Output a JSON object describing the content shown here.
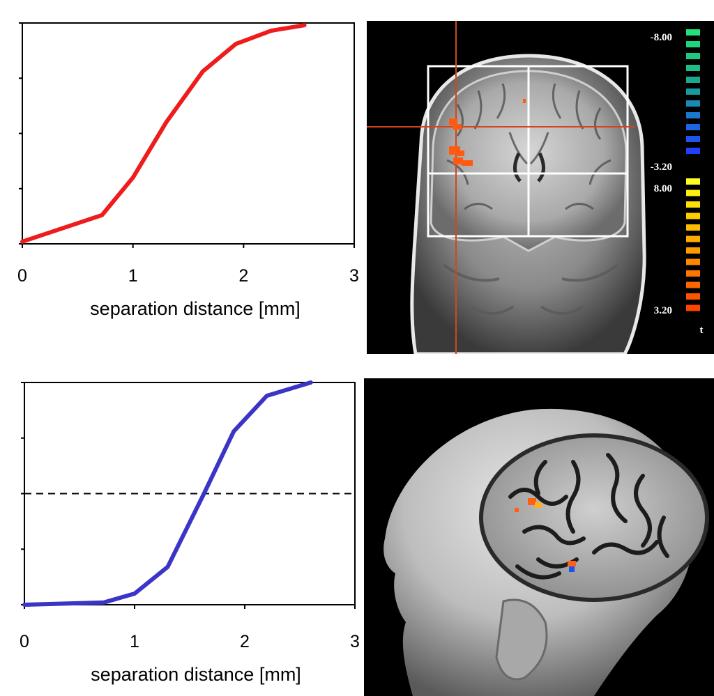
{
  "chart_data": [
    {
      "type": "line",
      "title": "",
      "xlabel": "separation distance [mm]",
      "ylabel": "",
      "xlim": [
        0,
        3
      ],
      "ylim": [
        0,
        1
      ],
      "x_ticks": [
        "0",
        "1",
        "2",
        "3"
      ],
      "y_tick_count": 5,
      "grid": false,
      "series": [
        {
          "color": "#ee1c1c",
          "x": [
            0,
            0.72,
            1.0,
            1.3,
            1.63,
            1.93,
            2.25,
            2.55
          ],
          "y": [
            0.01,
            0.13,
            0.3,
            0.55,
            0.78,
            0.905,
            0.965,
            0.99
          ]
        }
      ]
    },
    {
      "type": "line",
      "title": "",
      "xlabel": "separation distance [mm]",
      "ylabel": "",
      "xlim": [
        0,
        3
      ],
      "ylim": [
        0,
        1
      ],
      "x_ticks": [
        "0",
        "1",
        "2",
        "3"
      ],
      "y_tick_count": 5,
      "grid": false,
      "reference_line": {
        "y": 0.5,
        "style": "dashed",
        "color": "#000000"
      },
      "series": [
        {
          "color": "#3b35c7",
          "x": [
            0,
            0.72,
            1.0,
            1.3,
            1.63,
            1.9,
            2.2,
            2.6
          ],
          "y": [
            0.0,
            0.01,
            0.05,
            0.17,
            0.5,
            0.78,
            0.94,
            1.0
          ]
        }
      ]
    }
  ],
  "mri_colorbar": {
    "labels": [
      "-8.00",
      "-3.20",
      "8.00",
      "3.20",
      "t"
    ],
    "negative_colors": [
      "#22e07a",
      "#20d47e",
      "#1fc882",
      "#1ebc86",
      "#1ca88f",
      "#1a98a0",
      "#188cb4",
      "#1a78d0",
      "#1c66e0",
      "#1e55ee",
      "#2040ff"
    ],
    "positive_colors": [
      "#ffff22",
      "#ffee10",
      "#ffdd08",
      "#ffcc00",
      "#ffbb00",
      "#ffaa00",
      "#ff9900",
      "#ff8800",
      "#ff7700",
      "#ff6600",
      "#ff5500",
      "#ff4400"
    ]
  },
  "colors": {
    "crosshair": "#d2451e",
    "overlay_box": "#ffffff",
    "activation": "#ff5a10"
  }
}
